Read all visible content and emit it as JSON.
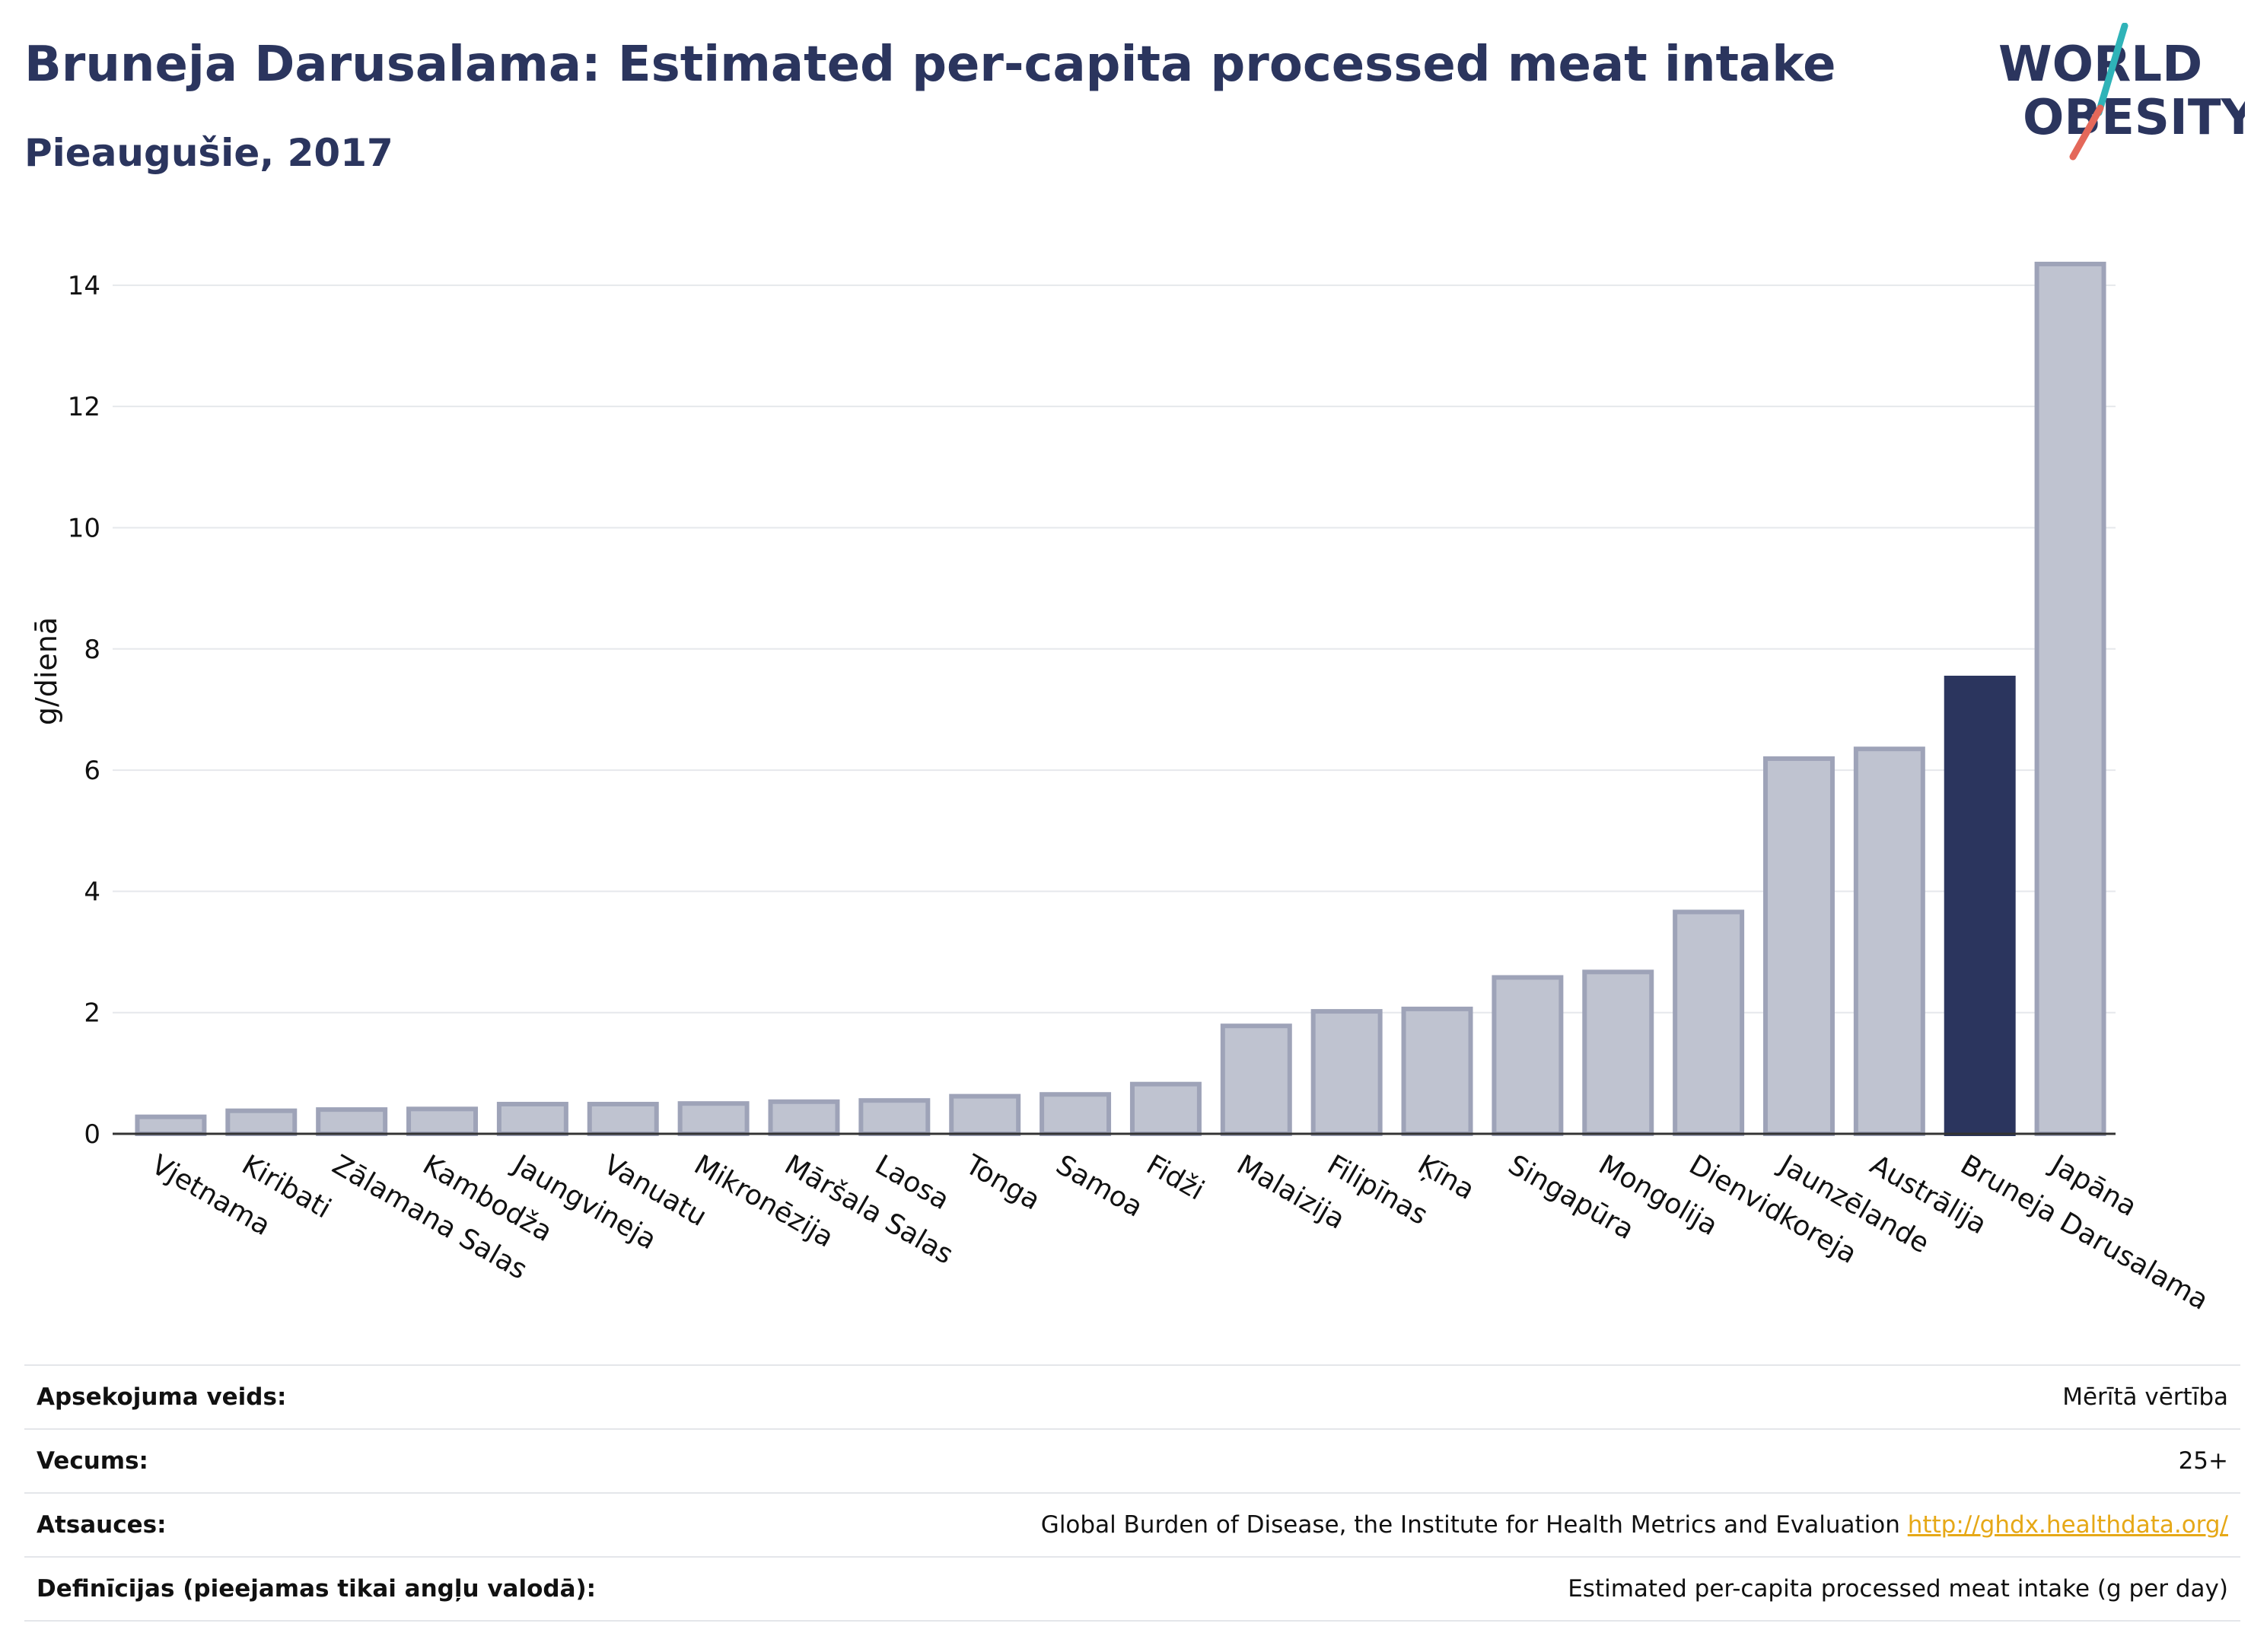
{
  "header": {
    "title": "Bruneja Darusalama: Estimated per-capita processed meat intake",
    "subtitle": "Pieaugušie, 2017"
  },
  "logo": {
    "line1": "WORLD",
    "line2": "OBESITY",
    "accent_colors": [
      "#2fb3b8",
      "#e4685a"
    ]
  },
  "colors": {
    "highlight": "#2b355e",
    "bar_fill": "#bfc3d0",
    "bar_stroke": "#9ea3b8",
    "grid": "#e6e8ec"
  },
  "chart_data": {
    "type": "bar",
    "ylabel": "g/dienā",
    "ylim": [
      0,
      14.5
    ],
    "yticks": [
      0,
      2,
      4,
      6,
      8,
      10,
      12,
      14
    ],
    "grid": true,
    "highlight_category": "Bruneja Darusalama",
    "categories": [
      "Vjetnama",
      "Kiribati",
      "Zālamana Salas",
      "Kambodža",
      "Jaungvineja",
      "Vanuatu",
      "Mikronēzija",
      "Māršala Salas",
      "Laosa",
      "Tonga",
      "Samoa",
      "Fidži",
      "Malaizija",
      "Filipīnas",
      "Ķīna",
      "Singapūra",
      "Mongolija",
      "Dienvidkoreja",
      "Jaunzēlande",
      "Austrālija",
      "Bruneja Darusalama",
      "Japāna"
    ],
    "values": [
      0.28,
      0.38,
      0.4,
      0.41,
      0.49,
      0.49,
      0.5,
      0.53,
      0.55,
      0.62,
      0.65,
      0.82,
      1.78,
      2.02,
      2.06,
      2.58,
      2.67,
      3.66,
      6.19,
      6.35,
      7.52,
      14.35
    ]
  },
  "info": {
    "rows": [
      {
        "label": "Apsekojuma veids:",
        "value": "Mērītā vērtība"
      },
      {
        "label": "Vecums:",
        "value": "25+"
      },
      {
        "label": "Atsauces:",
        "value": "Global Burden of Disease, the Institute for Health Metrics and Evaluation",
        "link": "http://ghdx.healthdata.org/"
      },
      {
        "label": "Definīcijas (pieejamas tikai angļu valodā):",
        "value": "Estimated per-capita processed meat intake (g per day)"
      }
    ]
  }
}
